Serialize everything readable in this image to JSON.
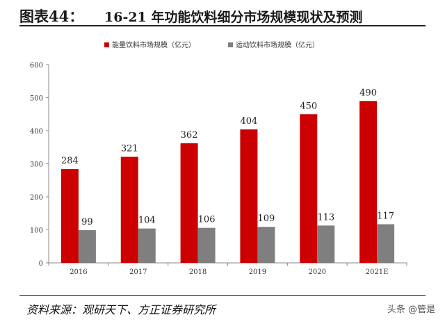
{
  "header": {
    "figure_number": "图表44：",
    "title": "16-21 年功能饮料细分市场规模现状及预测"
  },
  "chart_data": {
    "type": "bar",
    "categories": [
      "2016",
      "2017",
      "2018",
      "2019",
      "2020",
      "2021E"
    ],
    "series": [
      {
        "name": "能量饮料市场规模（亿元）",
        "values": [
          284,
          321,
          362,
          404,
          450,
          490
        ],
        "color": "#cc0000"
      },
      {
        "name": "运动饮料市场规模（亿元）",
        "values": [
          99,
          104,
          106,
          109,
          113,
          117
        ],
        "color": "#7f7f7f"
      }
    ],
    "ylim": [
      0,
      600
    ],
    "yticks": [
      0,
      100,
      200,
      300,
      400,
      500,
      600
    ],
    "data_labels": true,
    "grid": false,
    "legend_position": "top"
  },
  "footer": {
    "source": "资料来源：观研天下、方正证券研究所",
    "watermark": "头条 @管是"
  }
}
